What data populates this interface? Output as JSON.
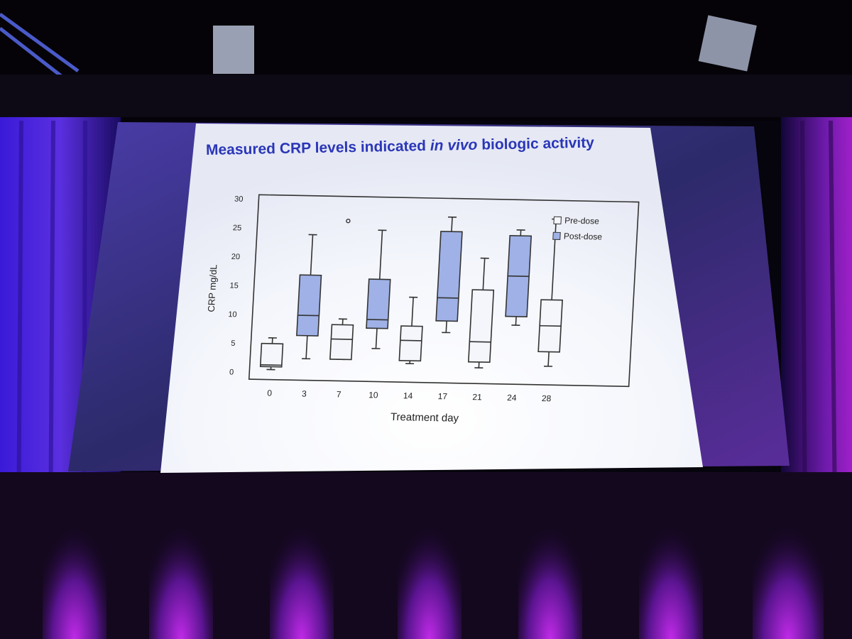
{
  "slide": {
    "title_before": "Measured CRP levels indicated ",
    "title_emphasis": "in vivo",
    "title_after": " biologic activity"
  },
  "chart_data": {
    "type": "box",
    "xlabel": "Treatment day",
    "ylabel": "CRP mg/dL",
    "ylim": [
      0,
      30
    ],
    "yticks": [
      0,
      5,
      10,
      15,
      20,
      25,
      30
    ],
    "categories": [
      "0",
      "3",
      "7",
      "10",
      "14",
      "17",
      "21",
      "24",
      "28"
    ],
    "legend": {
      "placement": "top-right"
    },
    "series": [
      {
        "name": "Pre-dose",
        "color": "#f4f6fb",
        "boxes": [
          {
            "day": "0",
            "min": 0.5,
            "q1": 1.0,
            "median": 1.3,
            "q3": 5.0,
            "max": 6.0
          },
          {
            "day": "7",
            "min": 2.5,
            "q1": 2.5,
            "median": 6.0,
            "q3": 8.5,
            "max": 9.5,
            "outliers": [
              26.5
            ]
          },
          {
            "day": "14",
            "min": 2.0,
            "q1": 2.5,
            "median": 6.0,
            "q3": 8.5,
            "max": 13.5
          },
          {
            "day": "21",
            "min": 1.5,
            "q1": 2.5,
            "median": 6.0,
            "q3": 15.0,
            "max": 20.5
          },
          {
            "day": "28",
            "min": 2.0,
            "q1": 4.5,
            "median": 9.0,
            "q3": 13.5,
            "max": 27.5
          }
        ]
      },
      {
        "name": "Post-dose",
        "color": "#9fb1e6",
        "boxes": [
          {
            "day": "3",
            "min": 2.5,
            "q1": 6.5,
            "median": 10.0,
            "q3": 17.0,
            "max": 24.0
          },
          {
            "day": "10",
            "min": 4.5,
            "q1": 8.0,
            "median": 9.5,
            "q3": 16.5,
            "max": 25.0
          },
          {
            "day": "17",
            "min": 7.5,
            "q1": 9.5,
            "median": 13.5,
            "q3": 25.0,
            "max": 27.5
          },
          {
            "day": "24",
            "min": 9.0,
            "q1": 10.5,
            "median": 17.5,
            "q3": 24.5,
            "max": 25.5
          }
        ]
      }
    ]
  }
}
